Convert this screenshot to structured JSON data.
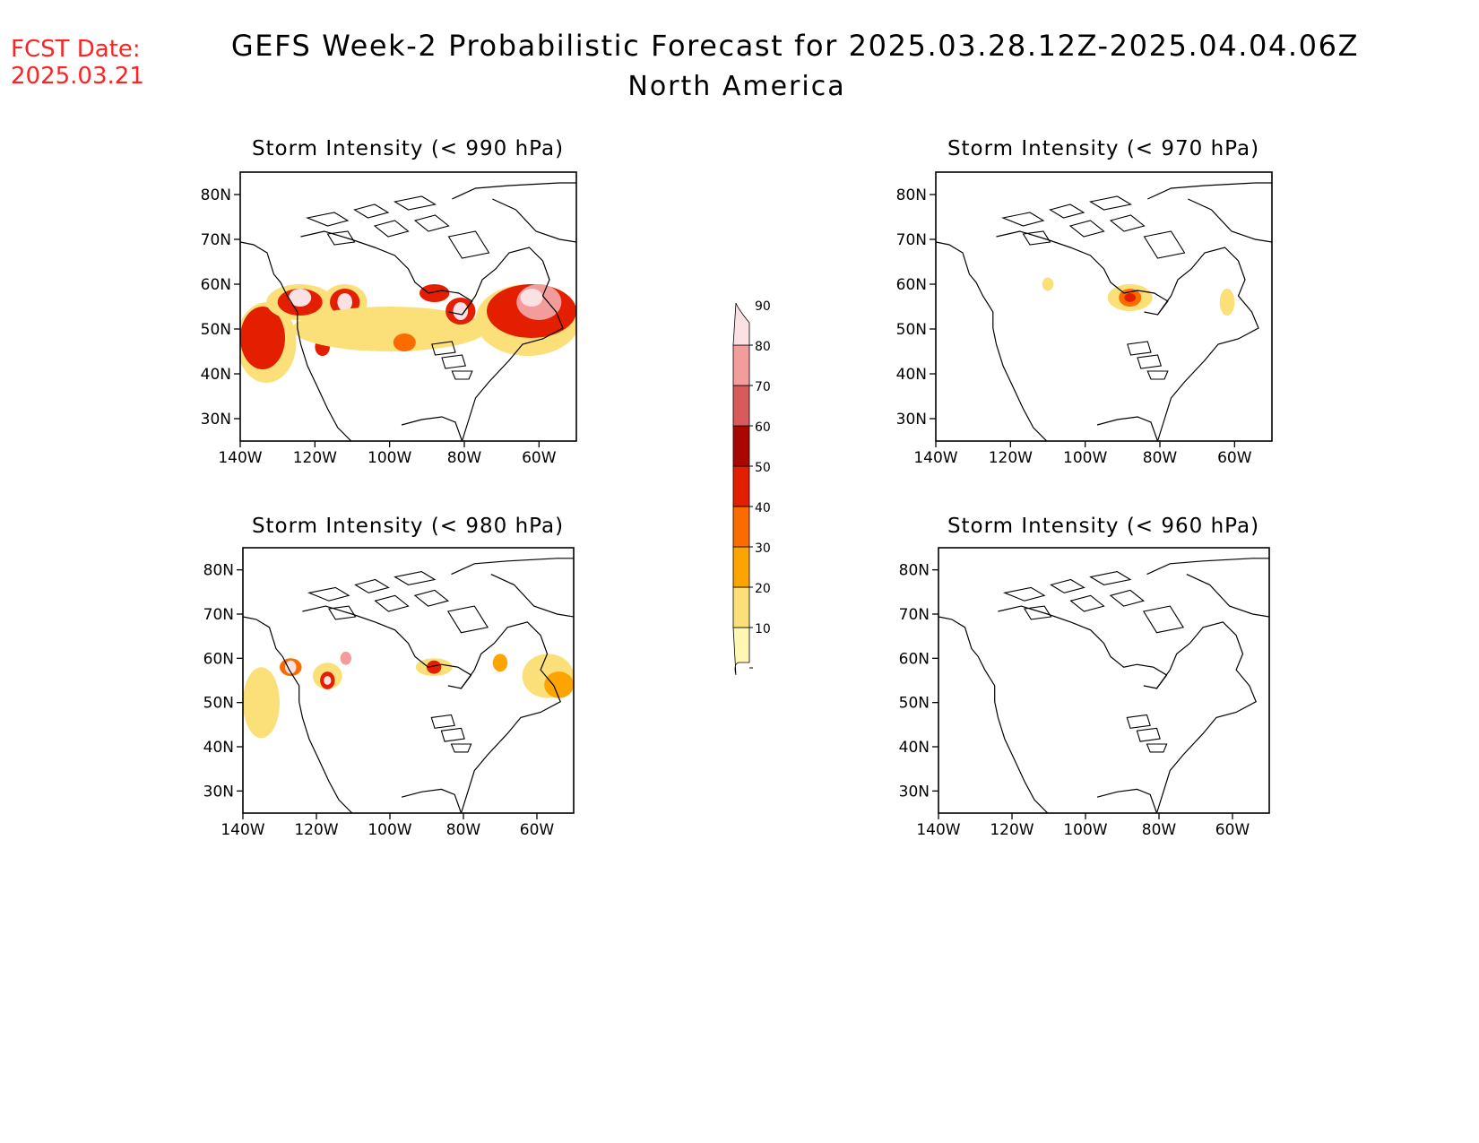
{
  "fcst": {
    "label": "FCST Date:",
    "date": "2025.03.21"
  },
  "title": {
    "line1": "GEFS Week-2 Probabilistic Forecast for 2025.03.28.12Z-2025.04.04.06Z",
    "line2": "North America"
  },
  "colors": {
    "text": "#000000",
    "fcst": "#ff2222",
    "levels": [
      "#fff7b2",
      "#fbe07a",
      "#fca400",
      "#fb6c00",
      "#e41e00",
      "#a80800",
      "#d85a5a",
      "#f29c9c",
      "#fbe1e4"
    ]
  },
  "colorbar": {
    "ticks": [
      "10",
      "20",
      "30",
      "40",
      "50",
      "60",
      "70",
      "80",
      "90"
    ]
  },
  "axes": {
    "lat_labels": [
      "80N",
      "70N",
      "60N",
      "50N",
      "40N",
      "30N"
    ],
    "lat_values": [
      80,
      70,
      60,
      50,
      40,
      30
    ],
    "lon_labels": [
      "140W",
      "120W",
      "100W",
      "80W",
      "60W"
    ],
    "lon_values": [
      -140,
      -120,
      -100,
      -80,
      -60
    ],
    "lon_range": [
      -140,
      -50
    ],
    "lat_range": [
      25,
      85
    ]
  },
  "panels": [
    {
      "title": "Storm Intensity (< 990 hPa)",
      "blobs": [
        {
          "lon": -133,
          "lat": 47,
          "rx": 8,
          "ry": 9,
          "level": 1
        },
        {
          "lon": -134,
          "lat": 48,
          "rx": 6,
          "ry": 7,
          "level": 4
        },
        {
          "lon": -124,
          "lat": 56,
          "rx": 9,
          "ry": 4,
          "level": 1
        },
        {
          "lon": -124,
          "lat": 56,
          "rx": 6,
          "ry": 3,
          "level": 4
        },
        {
          "lon": -124,
          "lat": 57,
          "rx": 3,
          "ry": 2,
          "level": 8
        },
        {
          "lon": -112,
          "lat": 56,
          "rx": 6,
          "ry": 4,
          "level": 1
        },
        {
          "lon": -112,
          "lat": 56,
          "rx": 4,
          "ry": 3,
          "level": 4
        },
        {
          "lon": -112,
          "lat": 56,
          "rx": 2,
          "ry": 2,
          "level": 8
        },
        {
          "lon": -118,
          "lat": 46,
          "rx": 2,
          "ry": 2,
          "level": 4
        },
        {
          "lon": -100,
          "lat": 50,
          "rx": 26,
          "ry": 5,
          "level": 1
        },
        {
          "lon": -96,
          "lat": 47,
          "rx": 3,
          "ry": 2,
          "level": 3
        },
        {
          "lon": -88,
          "lat": 58,
          "rx": 4,
          "ry": 2,
          "level": 4
        },
        {
          "lon": -81,
          "lat": 54,
          "rx": 4,
          "ry": 3,
          "level": 4
        },
        {
          "lon": -81,
          "lat": 54,
          "rx": 2,
          "ry": 2,
          "level": 8
        },
        {
          "lon": -63,
          "lat": 52,
          "rx": 14,
          "ry": 8,
          "level": 1
        },
        {
          "lon": -62,
          "lat": 54,
          "rx": 12,
          "ry": 6,
          "level": 4
        },
        {
          "lon": -60,
          "lat": 56,
          "rx": 6,
          "ry": 4,
          "level": 7
        },
        {
          "lon": -62,
          "lat": 57,
          "rx": 3,
          "ry": 2,
          "level": 8
        }
      ]
    },
    {
      "title": "Storm Intensity (< 970 hPa)",
      "blobs": [
        {
          "lon": -88,
          "lat": 57,
          "rx": 6,
          "ry": 3,
          "level": 1
        },
        {
          "lon": -88,
          "lat": 57,
          "rx": 3,
          "ry": 2,
          "level": 3
        },
        {
          "lon": -88,
          "lat": 57,
          "rx": 1.5,
          "ry": 1,
          "level": 4
        },
        {
          "lon": -62,
          "lat": 56,
          "rx": 2,
          "ry": 3,
          "level": 1
        },
        {
          "lon": -110,
          "lat": 60,
          "rx": 1.5,
          "ry": 1.5,
          "level": 1
        }
      ]
    },
    {
      "title": "Storm Intensity (< 980 hPa)",
      "blobs": [
        {
          "lon": -135,
          "lat": 50,
          "rx": 5,
          "ry": 8,
          "level": 1
        },
        {
          "lon": -127,
          "lat": 58,
          "rx": 3,
          "ry": 2,
          "level": 3
        },
        {
          "lon": -127,
          "lat": 58,
          "rx": 1.5,
          "ry": 1.5,
          "level": 8
        },
        {
          "lon": -117,
          "lat": 56,
          "rx": 4,
          "ry": 3,
          "level": 1
        },
        {
          "lon": -117,
          "lat": 55,
          "rx": 2,
          "ry": 2,
          "level": 4
        },
        {
          "lon": -117,
          "lat": 55,
          "rx": 1,
          "ry": 1,
          "level": 8
        },
        {
          "lon": -112,
          "lat": 60,
          "rx": 1.5,
          "ry": 1.5,
          "level": 7
        },
        {
          "lon": -88,
          "lat": 58,
          "rx": 5,
          "ry": 2,
          "level": 1
        },
        {
          "lon": -88,
          "lat": 58,
          "rx": 2,
          "ry": 1.5,
          "level": 4
        },
        {
          "lon": -70,
          "lat": 59,
          "rx": 2,
          "ry": 2,
          "level": 2
        },
        {
          "lon": -57,
          "lat": 56,
          "rx": 7,
          "ry": 5,
          "level": 1
        },
        {
          "lon": -54,
          "lat": 54,
          "rx": 4,
          "ry": 3,
          "level": 2
        }
      ]
    },
    {
      "title": "Storm Intensity (< 960 hPa)",
      "blobs": []
    }
  ]
}
